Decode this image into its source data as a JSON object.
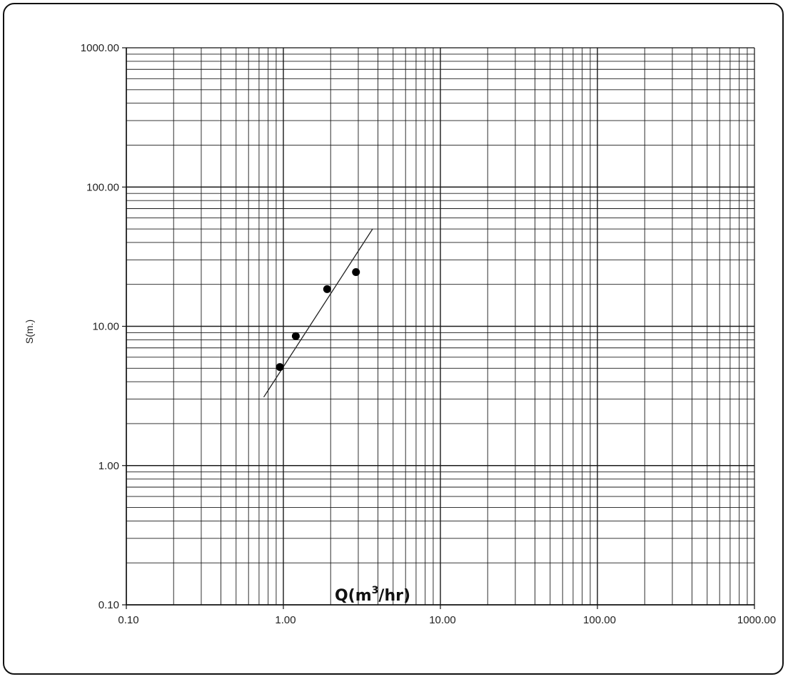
{
  "chart_data": {
    "type": "scatter",
    "title": "",
    "x_scale": "log",
    "y_scale": "log",
    "xlim": [
      0.1,
      1000
    ],
    "ylim": [
      0.1,
      1000
    ],
    "x_ticks": [
      "0.10",
      "1.00",
      "10.00",
      "100.00",
      "1000.00"
    ],
    "y_ticks": [
      "0.10",
      "1.00",
      "10.00",
      "100.00",
      "1000.00"
    ],
    "xlabel": {
      "base": "Q(m",
      "sup": "3",
      "tail": "/hr)"
    },
    "ylabel": "S(m.)",
    "grid": true,
    "legend": "none",
    "points": [
      {
        "x": 0.95,
        "y": 5.1
      },
      {
        "x": 1.2,
        "y": 8.5
      },
      {
        "x": 1.9,
        "y": 18.5
      },
      {
        "x": 2.9,
        "y": 24.5
      }
    ],
    "fit_line": {
      "x": [
        0.75,
        3.7
      ],
      "y": [
        3.1,
        50
      ]
    },
    "colors": {
      "grid": "#1a1a1a",
      "points": "#000000",
      "line": "#222222",
      "text": "#222222"
    }
  }
}
